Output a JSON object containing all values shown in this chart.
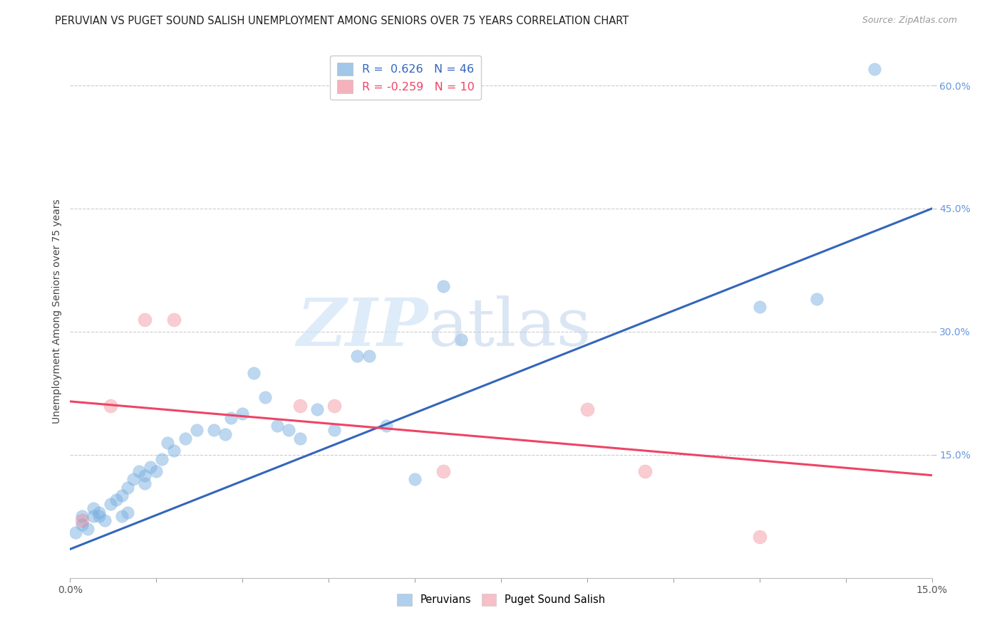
{
  "title": "PERUVIAN VS PUGET SOUND SALISH UNEMPLOYMENT AMONG SENIORS OVER 75 YEARS CORRELATION CHART",
  "source": "Source: ZipAtlas.com",
  "ylabel": "Unemployment Among Seniors over 75 years",
  "xlim": [
    0.0,
    0.15
  ],
  "ylim": [
    0.0,
    0.65
  ],
  "xticks": [
    0.0,
    0.015,
    0.03,
    0.045,
    0.06,
    0.075,
    0.09,
    0.105,
    0.12,
    0.135,
    0.15
  ],
  "xtick_labels_show": [
    "0.0%",
    "",
    "",
    "",
    "",
    "",
    "",
    "",
    "",
    "",
    "15.0%"
  ],
  "yticks_right": [
    0.15,
    0.3,
    0.45,
    0.6
  ],
  "ytick_labels_right": [
    "15.0%",
    "30.0%",
    "45.0%",
    "60.0%"
  ],
  "legend_r_entries": [
    {
      "label_r": "R = ",
      "r_val": " 0.626",
      "label_n": "  N = ",
      "n_val": "46",
      "color": "#6699cc"
    },
    {
      "label_r": "R = ",
      "r_val": "-0.259",
      "label_n": "  N = ",
      "n_val": "10",
      "color": "#ff6688"
    }
  ],
  "peruvians_x": [
    0.001,
    0.002,
    0.002,
    0.003,
    0.004,
    0.004,
    0.005,
    0.005,
    0.006,
    0.007,
    0.008,
    0.009,
    0.009,
    0.01,
    0.01,
    0.011,
    0.012,
    0.013,
    0.013,
    0.014,
    0.015,
    0.016,
    0.017,
    0.018,
    0.02,
    0.022,
    0.025,
    0.027,
    0.028,
    0.03,
    0.032,
    0.034,
    0.036,
    0.038,
    0.04,
    0.043,
    0.046,
    0.05,
    0.052,
    0.055,
    0.06,
    0.065,
    0.068,
    0.12,
    0.13,
    0.14
  ],
  "peruvians_y": [
    0.055,
    0.065,
    0.075,
    0.06,
    0.075,
    0.085,
    0.08,
    0.075,
    0.07,
    0.09,
    0.095,
    0.1,
    0.075,
    0.11,
    0.08,
    0.12,
    0.13,
    0.125,
    0.115,
    0.135,
    0.13,
    0.145,
    0.165,
    0.155,
    0.17,
    0.18,
    0.18,
    0.175,
    0.195,
    0.2,
    0.25,
    0.22,
    0.185,
    0.18,
    0.17,
    0.205,
    0.18,
    0.27,
    0.27,
    0.185,
    0.12,
    0.355,
    0.29,
    0.33,
    0.34,
    0.62
  ],
  "puget_x": [
    0.002,
    0.007,
    0.013,
    0.018,
    0.04,
    0.046,
    0.065,
    0.09,
    0.1,
    0.12
  ],
  "puget_y": [
    0.07,
    0.21,
    0.315,
    0.315,
    0.21,
    0.21,
    0.13,
    0.205,
    0.13,
    0.05
  ],
  "blue_line_x": [
    0.0,
    0.15
  ],
  "blue_line_y": [
    0.035,
    0.45
  ],
  "pink_line_x": [
    0.0,
    0.15
  ],
  "pink_line_y": [
    0.215,
    0.125
  ],
  "grid_yticks": [
    0.15,
    0.3,
    0.45,
    0.6
  ],
  "blue_scatter_color": "#7ab0e0",
  "blue_scatter_alpha": 0.5,
  "pink_scatter_color": "#f08090",
  "pink_scatter_alpha": 0.4,
  "blue_line_color": "#3366bb",
  "pink_line_color": "#ee4466",
  "scatter_size": 160,
  "title_fontsize": 10.5,
  "tick_fontsize": 10,
  "ylabel_fontsize": 10
}
